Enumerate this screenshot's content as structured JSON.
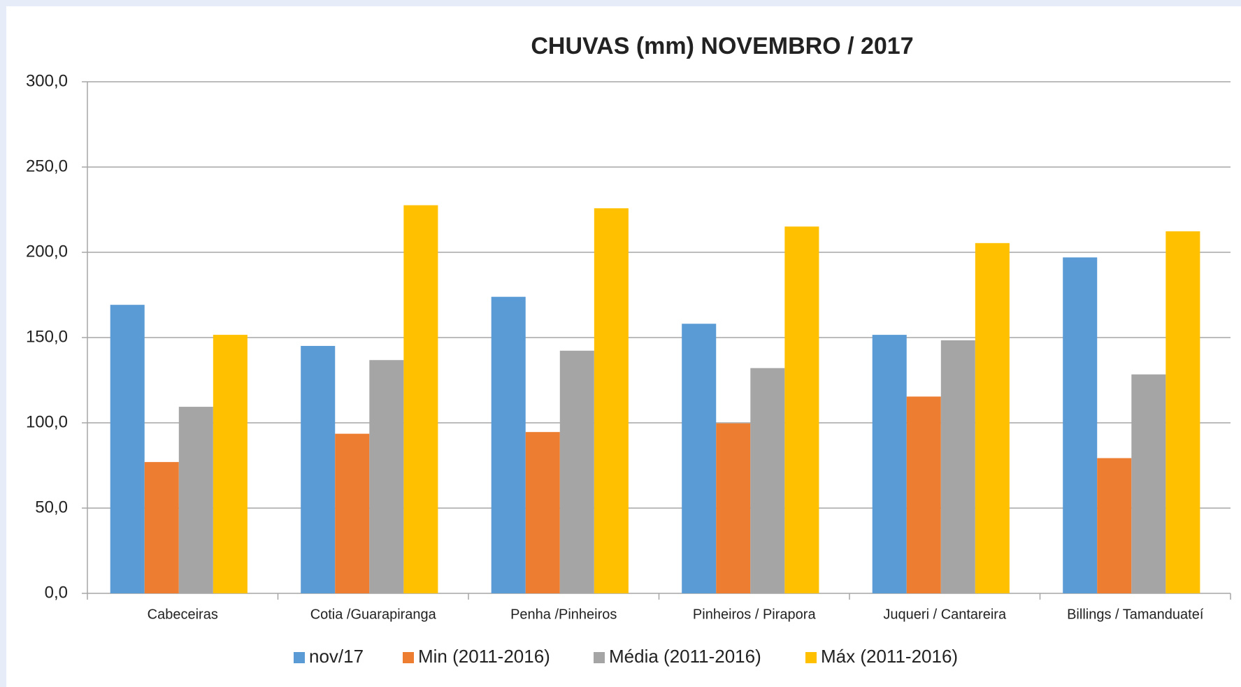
{
  "chart_data": {
    "type": "bar",
    "title": "CHUVAS (mm) NOVEMBRO  / 2017",
    "categories": [
      "Cabeceiras",
      "Cotia /Guarapiranga",
      "Penha /Pinheiros",
      "Pinheiros / Pirapora",
      "Juqueri / Cantareira",
      "Billings / Tamanduateí"
    ],
    "series": [
      {
        "name": "nov/17",
        "color": "#5b9bd5",
        "values": [
          169.2,
          145.1,
          173.9,
          158.1,
          151.6,
          197.0
        ]
      },
      {
        "name": "Min (2011-2016)",
        "color": "#ed7d31",
        "values": [
          77.0,
          93.6,
          94.6,
          99.7,
          115.4,
          79.3
        ]
      },
      {
        "name": "Média (2011-2016)",
        "color": "#a5a5a5",
        "values": [
          109.4,
          136.8,
          142.3,
          132.1,
          148.4,
          128.4
        ]
      },
      {
        "name": "Máx  (2011-2016)",
        "color": "#ffc000",
        "values": [
          151.6,
          227.6,
          225.8,
          215.1,
          205.4,
          212.3
        ]
      }
    ],
    "ylim": [
      0,
      300
    ],
    "yticks": [
      {
        "value": 0,
        "label": "0,0"
      },
      {
        "value": 50,
        "label": "50,0"
      },
      {
        "value": 100,
        "label": "100,0"
      },
      {
        "value": 150,
        "label": "150,0"
      },
      {
        "value": 200,
        "label": "200,0"
      },
      {
        "value": 250,
        "label": "250,0"
      },
      {
        "value": 300,
        "label": "300,0"
      }
    ],
    "grid": true,
    "legend": "bottom"
  }
}
